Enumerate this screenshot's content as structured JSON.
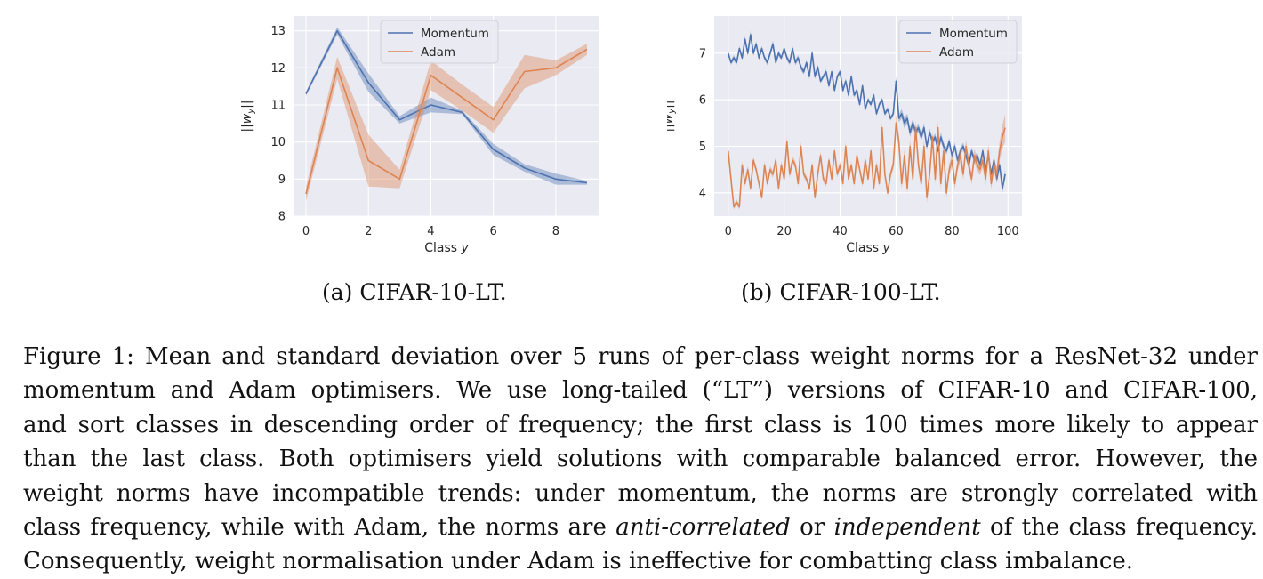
{
  "chart_data": [
    {
      "type": "line",
      "xlabel": "Class y",
      "ylabel": "||w_y||",
      "xlim": [
        -0.4,
        9.4
      ],
      "ylim": [
        8,
        13.4
      ],
      "xticks": [
        0,
        2,
        4,
        6,
        8
      ],
      "yticks": [
        8,
        9,
        10,
        11,
        12,
        13
      ],
      "grid": true,
      "legend_position": "top-center",
      "series": [
        {
          "name": "Momentum",
          "color": "#4c72b0",
          "x": [
            0,
            1,
            2,
            3,
            4,
            5,
            6,
            7,
            8,
            9
          ],
          "values": [
            11.3,
            13.0,
            11.6,
            10.6,
            11.0,
            10.8,
            9.8,
            9.3,
            9.0,
            8.9
          ],
          "std": [
            0.05,
            0.1,
            0.25,
            0.1,
            0.2,
            0.05,
            0.15,
            0.1,
            0.15,
            0.05
          ]
        },
        {
          "name": "Adam",
          "color": "#dd8452",
          "x": [
            0,
            1,
            2,
            3,
            4,
            5,
            6,
            7,
            8,
            9
          ],
          "values": [
            8.6,
            12.0,
            9.5,
            9.0,
            11.8,
            11.2,
            10.6,
            11.9,
            12.0,
            12.5
          ],
          "std": [
            0.2,
            0.3,
            0.7,
            0.25,
            0.4,
            0.35,
            0.35,
            0.45,
            0.2,
            0.15
          ]
        }
      ]
    },
    {
      "type": "line",
      "xlabel": "Class y",
      "ylabel": "||w_y||",
      "xlim": [
        -5,
        105
      ],
      "ylim": [
        3.5,
        7.8
      ],
      "xticks": [
        0,
        20,
        40,
        60,
        80,
        100
      ],
      "yticks": [
        4,
        5,
        6,
        7
      ],
      "grid": true,
      "legend_position": "top-right",
      "series": [
        {
          "name": "Momentum",
          "color": "#4c72b0",
          "x": [
            0,
            1,
            2,
            3,
            4,
            5,
            6,
            7,
            8,
            9,
            10,
            11,
            12,
            13,
            14,
            15,
            16,
            17,
            18,
            19,
            20,
            21,
            22,
            23,
            24,
            25,
            26,
            27,
            28,
            29,
            30,
            31,
            32,
            33,
            34,
            35,
            36,
            37,
            38,
            39,
            40,
            41,
            42,
            43,
            44,
            45,
            46,
            47,
            48,
            49,
            50,
            51,
            52,
            53,
            54,
            55,
            56,
            57,
            58,
            59,
            60,
            61,
            62,
            63,
            64,
            65,
            66,
            67,
            68,
            69,
            70,
            71,
            72,
            73,
            74,
            75,
            76,
            77,
            78,
            79,
            80,
            81,
            82,
            83,
            84,
            85,
            86,
            87,
            88,
            89,
            90,
            91,
            92,
            93,
            94,
            95,
            96,
            97,
            98,
            99
          ],
          "values": [
            7.0,
            6.8,
            6.9,
            6.8,
            7.1,
            6.9,
            7.3,
            7.0,
            7.4,
            7.0,
            7.2,
            6.9,
            7.1,
            6.9,
            6.8,
            7.0,
            7.2,
            6.8,
            7.0,
            6.9,
            7.1,
            6.9,
            6.8,
            7.1,
            6.8,
            6.9,
            6.7,
            6.6,
            6.8,
            6.5,
            7.0,
            6.5,
            6.7,
            6.4,
            6.5,
            6.6,
            6.3,
            6.6,
            6.2,
            6.5,
            6.6,
            6.2,
            6.4,
            6.1,
            6.5,
            6.1,
            6.2,
            5.9,
            6.3,
            5.8,
            6.0,
            5.9,
            6.1,
            5.7,
            5.9,
            6.0,
            5.7,
            5.8,
            5.6,
            5.7,
            6.4,
            5.6,
            5.7,
            5.5,
            5.6,
            5.3,
            5.5,
            5.3,
            5.4,
            5.2,
            5.4,
            5.0,
            5.3,
            5.1,
            5.2,
            4.9,
            5.2,
            5.0,
            4.9,
            5.1,
            4.8,
            5.0,
            4.7,
            4.9,
            5.0,
            4.8,
            4.6,
            4.9,
            4.7,
            4.8,
            4.6,
            4.9,
            4.5,
            4.8,
            4.4,
            4.7,
            4.3,
            4.6,
            4.1,
            4.4
          ],
          "std": [
            0.05,
            0.05,
            0.06,
            0.05,
            0.06,
            0.06,
            0.07,
            0.06,
            0.08,
            0.06,
            0.06,
            0.06,
            0.06,
            0.05,
            0.06,
            0.06,
            0.07,
            0.06,
            0.06,
            0.05,
            0.05,
            0.06,
            0.05,
            0.06,
            0.06,
            0.06,
            0.06,
            0.06,
            0.06,
            0.06,
            0.07,
            0.06,
            0.06,
            0.05,
            0.05,
            0.06,
            0.05,
            0.06,
            0.05,
            0.05,
            0.06,
            0.06,
            0.06,
            0.05,
            0.06,
            0.05,
            0.06,
            0.05,
            0.06,
            0.05,
            0.05,
            0.05,
            0.05,
            0.05,
            0.05,
            0.05,
            0.05,
            0.05,
            0.05,
            0.05,
            0.1,
            0.08,
            0.1,
            0.12,
            0.1,
            0.1,
            0.1,
            0.08,
            0.1,
            0.08,
            0.1,
            0.08,
            0.08,
            0.08,
            0.08,
            0.08,
            0.1,
            0.08,
            0.08,
            0.08,
            0.08,
            0.08,
            0.08,
            0.08,
            0.08,
            0.08,
            0.1,
            0.08,
            0.08,
            0.08,
            0.08,
            0.08,
            0.1,
            0.08,
            0.1,
            0.08,
            0.1,
            0.08,
            0.1,
            0.1
          ]
        },
        {
          "name": "Adam",
          "color": "#dd8452",
          "x": [
            0,
            1,
            2,
            3,
            4,
            5,
            6,
            7,
            8,
            9,
            10,
            11,
            12,
            13,
            14,
            15,
            16,
            17,
            18,
            19,
            20,
            21,
            22,
            23,
            24,
            25,
            26,
            27,
            28,
            29,
            30,
            31,
            32,
            33,
            34,
            35,
            36,
            37,
            38,
            39,
            40,
            41,
            42,
            43,
            44,
            45,
            46,
            47,
            48,
            49,
            50,
            51,
            52,
            53,
            54,
            55,
            56,
            57,
            58,
            59,
            60,
            61,
            62,
            63,
            64,
            65,
            66,
            67,
            68,
            69,
            70,
            71,
            72,
            73,
            74,
            75,
            76,
            77,
            78,
            79,
            80,
            81,
            82,
            83,
            84,
            85,
            86,
            87,
            88,
            89,
            90,
            91,
            92,
            93,
            94,
            95,
            96,
            97,
            98,
            99
          ],
          "values": [
            4.9,
            4.3,
            3.7,
            3.8,
            3.7,
            4.6,
            4.2,
            4.5,
            4.1,
            4.7,
            4.5,
            4.2,
            3.9,
            4.6,
            4.2,
            4.5,
            4.4,
            4.7,
            4.1,
            4.6,
            4.3,
            5.1,
            4.4,
            4.7,
            4.6,
            4.2,
            5.0,
            4.4,
            4.3,
            4.1,
            4.6,
            3.9,
            4.4,
            4.8,
            4.3,
            4.2,
            4.7,
            4.3,
            4.9,
            4.4,
            4.6,
            4.2,
            5.0,
            4.3,
            4.6,
            4.2,
            4.8,
            4.5,
            4.2,
            4.7,
            4.3,
            4.9,
            4.1,
            4.6,
            4.2,
            5.4,
            4.4,
            4.0,
            4.4,
            4.6,
            5.5,
            5.1,
            4.2,
            4.8,
            4.1,
            5.0,
            4.3,
            5.4,
            4.6,
            4.2,
            5.0,
            3.9,
            4.4,
            5.2,
            4.3,
            5.4,
            4.2,
            4.9,
            4.0,
            4.5,
            4.7,
            4.2,
            4.6,
            4.8,
            4.4,
            5.0,
            4.6,
            4.3,
            4.8,
            4.6,
            4.5,
            4.7,
            4.3,
            4.9,
            4.2,
            4.6,
            4.4,
            4.9,
            5.2,
            5.4
          ],
          "std": [
            0.08,
            0.08,
            0.06,
            0.06,
            0.06,
            0.08,
            0.07,
            0.08,
            0.07,
            0.08,
            0.07,
            0.07,
            0.06,
            0.08,
            0.07,
            0.08,
            0.07,
            0.08,
            0.07,
            0.08,
            0.07,
            0.1,
            0.08,
            0.08,
            0.08,
            0.07,
            0.1,
            0.07,
            0.07,
            0.07,
            0.08,
            0.06,
            0.07,
            0.08,
            0.07,
            0.07,
            0.08,
            0.07,
            0.09,
            0.07,
            0.08,
            0.07,
            0.09,
            0.07,
            0.08,
            0.07,
            0.08,
            0.07,
            0.07,
            0.08,
            0.07,
            0.09,
            0.07,
            0.08,
            0.07,
            0.12,
            0.08,
            0.07,
            0.08,
            0.09,
            0.2,
            0.15,
            0.12,
            0.15,
            0.12,
            0.15,
            0.12,
            0.15,
            0.12,
            0.12,
            0.15,
            0.12,
            0.12,
            0.15,
            0.12,
            0.15,
            0.12,
            0.15,
            0.12,
            0.12,
            0.15,
            0.12,
            0.12,
            0.15,
            0.12,
            0.15,
            0.12,
            0.12,
            0.15,
            0.12,
            0.12,
            0.15,
            0.12,
            0.15,
            0.12,
            0.15,
            0.15,
            0.2,
            0.25,
            0.3
          ]
        }
      ]
    }
  ],
  "subcaptions": {
    "a": "(a) CIFAR-10-LT.",
    "b": "(b) CIFAR-100-LT."
  },
  "caption": {
    "l1": "Figure 1: Mean and standard deviation over 5 runs of per-class weight norms for a ResNet-32 under",
    "l2": "momentum and Adam optimisers. We use long-tailed (“LT”) versions of CIFAR-10 and CIFAR-100,",
    "l3": "and sort classes in descending order of frequency; the first class is 100 times more likely to appear",
    "l4": "than the last class. Both optimisers yield solutions with comparable balanced error. However, the",
    "l5": "weight norms have incompatible trends: under momentum, the norms are strongly correlated with",
    "l6_pre": "class frequency, while with Adam, the norms are ",
    "l6_em1": "anti-correlated",
    "l6_mid": " or ",
    "l6_em2": "independent",
    "l6_post": " of the class frequency.",
    "l7": "Consequently, weight normalisation under Adam is ineffective for combatting class imbalance."
  }
}
